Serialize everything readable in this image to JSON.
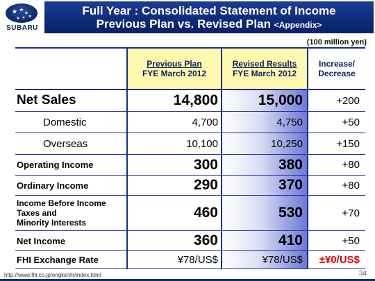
{
  "brand": {
    "wordmark": "SUBARU",
    "logo_icon": "pleiades-stars-icon"
  },
  "title": {
    "line1": "Full Year : Consolidated Statement of Income",
    "line2_main": "Previous Plan vs. Revised Plan",
    "line2_tag": "<Appendix>"
  },
  "unit": "(100 million yen)",
  "columns": {
    "prev_line1": "Previous Plan",
    "prev_line2": "FYE March 2012",
    "rev_line1": "Revised Results",
    "rev_line2": "FYE March 2012",
    "inc_line1": "Increase/",
    "inc_line2": "Decrease"
  },
  "rows": [
    {
      "label": "Net Sales",
      "prev": "14,800",
      "rev": "15,000",
      "inc": "+200"
    },
    {
      "label": "Domestic",
      "prev": "4,700",
      "rev": "4,750",
      "inc": "+50"
    },
    {
      "label": "Overseas",
      "prev": "10,100",
      "rev": "10,250",
      "inc": "+150"
    },
    {
      "label": "Operating Income",
      "prev": "300",
      "rev": "380",
      "inc": "+80"
    },
    {
      "label": "Ordinary Income",
      "prev": "290",
      "rev": "370",
      "inc": "+80"
    },
    {
      "label_l1": "Income Before Income",
      "label_l2": "Taxes and",
      "label_l3": "Minority Interests",
      "prev": "460",
      "rev": "530",
      "inc": "+70"
    },
    {
      "label": "Net Income",
      "prev": "360",
      "rev": "410",
      "inc": "+50"
    },
    {
      "label": "FHI Exchange Rate",
      "prev": "¥78/US$",
      "rev": "¥78/US$",
      "inc": "±¥0/US$"
    }
  ],
  "colors": {
    "accent_red": "#e00000",
    "brand_blue": "#0d2a78",
    "header_yellow": "#fff9b0"
  },
  "footer": {
    "url": "http://www.fhi.co.jp/english/ir/index.html",
    "page": "34"
  }
}
